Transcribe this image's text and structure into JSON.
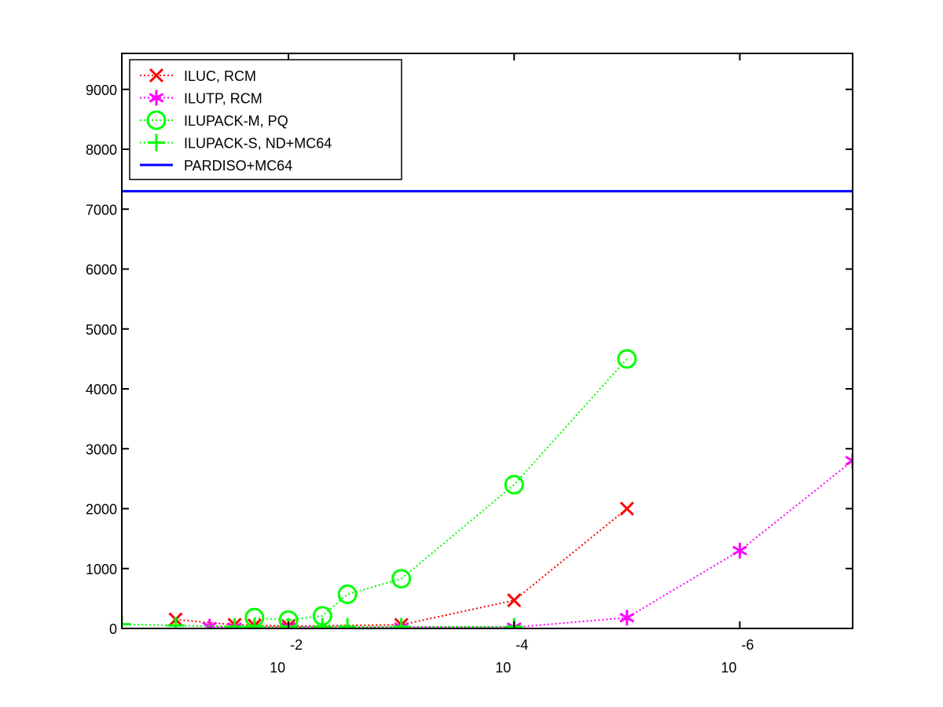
{
  "chart_data": {
    "type": "line",
    "title": "",
    "xlabel": "",
    "ylabel": "",
    "x_scale": "log",
    "x_reversed": true,
    "xlim": [
      0.3,
      1e-07
    ],
    "ylim": [
      0,
      9600
    ],
    "y_ticks": [
      0,
      1000,
      2000,
      3000,
      4000,
      5000,
      6000,
      7000,
      8000,
      9000
    ],
    "x_ticks": [
      {
        "value": 0.01,
        "base": "10",
        "exponent": "-2"
      },
      {
        "value": 0.0001,
        "base": "10",
        "exponent": "-4"
      },
      {
        "value": 1e-06,
        "base": "10",
        "exponent": "-6"
      }
    ],
    "grid": false,
    "legend_position": "top-left",
    "series": [
      {
        "name": "ILUC, RCM",
        "color": "#ff0000",
        "marker": "x",
        "line": "dotted",
        "x": [
          0.1,
          0.03,
          0.02,
          0.01,
          0.001,
          0.0001,
          1e-05
        ],
        "y": [
          150,
          60,
          50,
          40,
          60,
          470,
          2000
        ]
      },
      {
        "name": "ILUTP, RCM",
        "color": "#ff00ff",
        "marker": "asterisk",
        "line": "dotted",
        "x": [
          0.05,
          0.03,
          0.02,
          0.01,
          0.001,
          0.0001,
          1e-05,
          1e-06,
          1e-07
        ],
        "y": [
          30,
          20,
          20,
          20,
          20,
          20,
          180,
          1300,
          2800
        ]
      },
      {
        "name": "ILUPACK-M, PQ",
        "color": "#00ff00",
        "marker": "circle",
        "line": "dotted",
        "x": [
          0.02,
          0.01,
          0.005,
          0.003,
          0.001,
          0.0001,
          1e-05
        ],
        "y": [
          180,
          140,
          210,
          570,
          830,
          2400,
          4500
        ]
      },
      {
        "name": "ILUPACK-S, ND+MC64",
        "color": "#00ff00",
        "marker": "plus",
        "line": "dotted",
        "x": [
          0.3,
          0.1,
          0.03,
          0.02,
          0.01,
          0.005,
          0.003,
          0.001,
          0.0001
        ],
        "y": [
          70,
          50,
          30,
          30,
          30,
          30,
          30,
          30,
          30
        ]
      },
      {
        "name": "PARDISO+MC64",
        "color": "#0000ff",
        "marker": "none",
        "line": "solid",
        "x": [
          0.3,
          1e-07
        ],
        "y": [
          7300,
          7300
        ]
      }
    ]
  }
}
